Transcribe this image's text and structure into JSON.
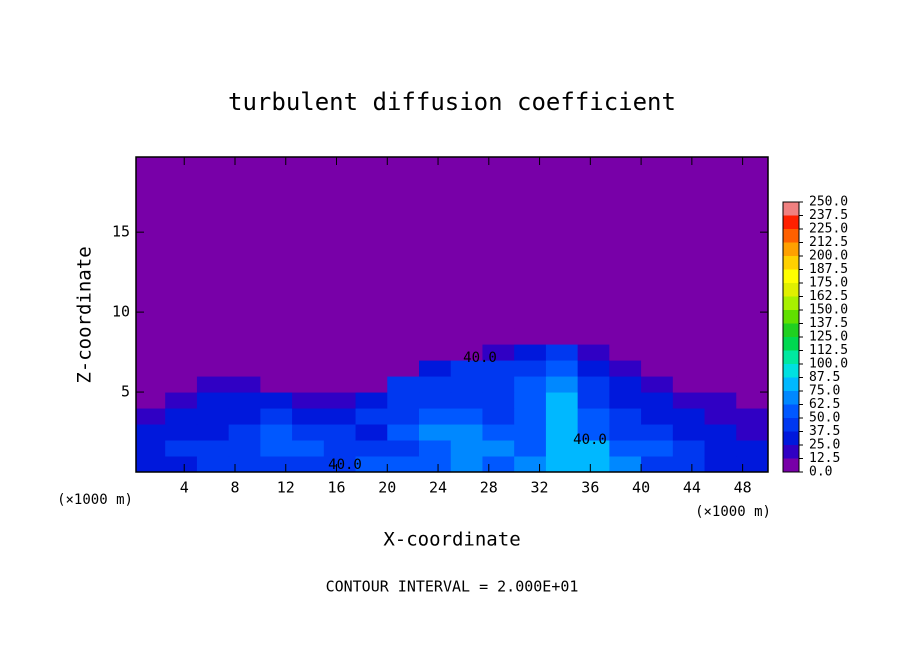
{
  "chart_data": {
    "type": "contour",
    "title": "turbulent diffusion coefficient",
    "x_label": "X-coordinate",
    "y_label": "Z-coordinate",
    "x_unit": "(×1000 m)",
    "y_unit": "(×1000 m)",
    "footer": "CONTOUR INTERVAL = 2.000E+01",
    "contour_labels": [
      "40.0",
      "40.0",
      "40.0"
    ],
    "xlim": [
      0.2,
      50
    ],
    "ylim": [
      0,
      19.7
    ],
    "xticks": [
      4,
      8,
      12,
      16,
      20,
      24,
      28,
      32,
      36,
      40,
      44,
      48
    ],
    "yticks": [
      5,
      10,
      15
    ],
    "x": [
      1.25,
      3.75,
      6.25,
      8.75,
      11.25,
      13.75,
      16.25,
      18.75,
      21.25,
      23.75,
      26.25,
      28.75,
      31.25,
      33.75,
      36.25,
      38.75,
      41.25,
      43.75,
      46.25,
      48.75
    ],
    "y": [
      0.5,
      1.5,
      2.5,
      3.5,
      4.5,
      5.5,
      6.5,
      7.5,
      8.5
    ],
    "z": [
      [
        30,
        35,
        40,
        45,
        45,
        40,
        45,
        50,
        55,
        60,
        65,
        60,
        70,
        75,
        80,
        70,
        45,
        40,
        35,
        30
      ],
      [
        35,
        40,
        45,
        40,
        50,
        55,
        45,
        40,
        45,
        55,
        70,
        65,
        60,
        80,
        75,
        55,
        50,
        40,
        35,
        30
      ],
      [
        25,
        35,
        30,
        40,
        50,
        45,
        40,
        35,
        60,
        70,
        65,
        50,
        55,
        85,
        60,
        45,
        40,
        30,
        25,
        20
      ],
      [
        15,
        25,
        30,
        35,
        40,
        35,
        30,
        40,
        45,
        50,
        50,
        45,
        60,
        80,
        55,
        40,
        30,
        25,
        20,
        15
      ],
      [
        10,
        20,
        25,
        30,
        25,
        20,
        15,
        35,
        45,
        45,
        45,
        40,
        55,
        75,
        45,
        35,
        25,
        20,
        15,
        10
      ],
      [
        5,
        10,
        20,
        15,
        10,
        10,
        5,
        10,
        40,
        40,
        40,
        40,
        50,
        70,
        40,
        30,
        20,
        10,
        5,
        5
      ],
      [
        0,
        0,
        5,
        5,
        0,
        0,
        0,
        0,
        5,
        35,
        40,
        40,
        45,
        60,
        35,
        20,
        5,
        0,
        0,
        0
      ],
      [
        0,
        0,
        0,
        0,
        0,
        0,
        0,
        0,
        0,
        5,
        10,
        15,
        25,
        40,
        15,
        5,
        0,
        0,
        0,
        0
      ],
      [
        0,
        0,
        0,
        0,
        0,
        0,
        0,
        0,
        0,
        0,
        0,
        5,
        10,
        10,
        0,
        0,
        0,
        0,
        0,
        0
      ]
    ],
    "colorbar_ticks": [
      {
        "value": 0,
        "label": "0.0"
      },
      {
        "value": 12.5,
        "label": "12.5"
      },
      {
        "value": 25,
        "label": "25.0"
      },
      {
        "value": 37.5,
        "label": "37.5"
      },
      {
        "value": 50,
        "label": "50.0"
      },
      {
        "value": 62.5,
        "label": "62.5"
      },
      {
        "value": 75,
        "label": "75.0"
      },
      {
        "value": 87.5,
        "label": "87.5"
      },
      {
        "value": 100,
        "label": "100.0"
      },
      {
        "value": 112.5,
        "label": "112.5"
      },
      {
        "value": 125,
        "label": "125.0"
      },
      {
        "value": 137.5,
        "label": "137.5"
      },
      {
        "value": 150,
        "label": "150.0"
      },
      {
        "value": 162.5,
        "label": "162.5"
      },
      {
        "value": 175,
        "label": "175.0"
      },
      {
        "value": 187.5,
        "label": "187.5"
      },
      {
        "value": 200,
        "label": "200.0"
      },
      {
        "value": 212.5,
        "label": "212.5"
      },
      {
        "value": 225,
        "label": "225.0"
      },
      {
        "value": 237.5,
        "label": "237.5"
      },
      {
        "value": 250,
        "label": "250.0"
      }
    ],
    "colors": [
      "#7800a8",
      "#3000c4",
      "#0018dc",
      "#0038f0",
      "#0058ff",
      "#0088ff",
      "#00b8ff",
      "#00e0e0",
      "#00e8a0",
      "#00d850",
      "#20d020",
      "#60e000",
      "#a8f000",
      "#e0f000",
      "#ffff00",
      "#ffd000",
      "#ffa000",
      "#ff6000",
      "#ff2000",
      "#f08080"
    ]
  }
}
